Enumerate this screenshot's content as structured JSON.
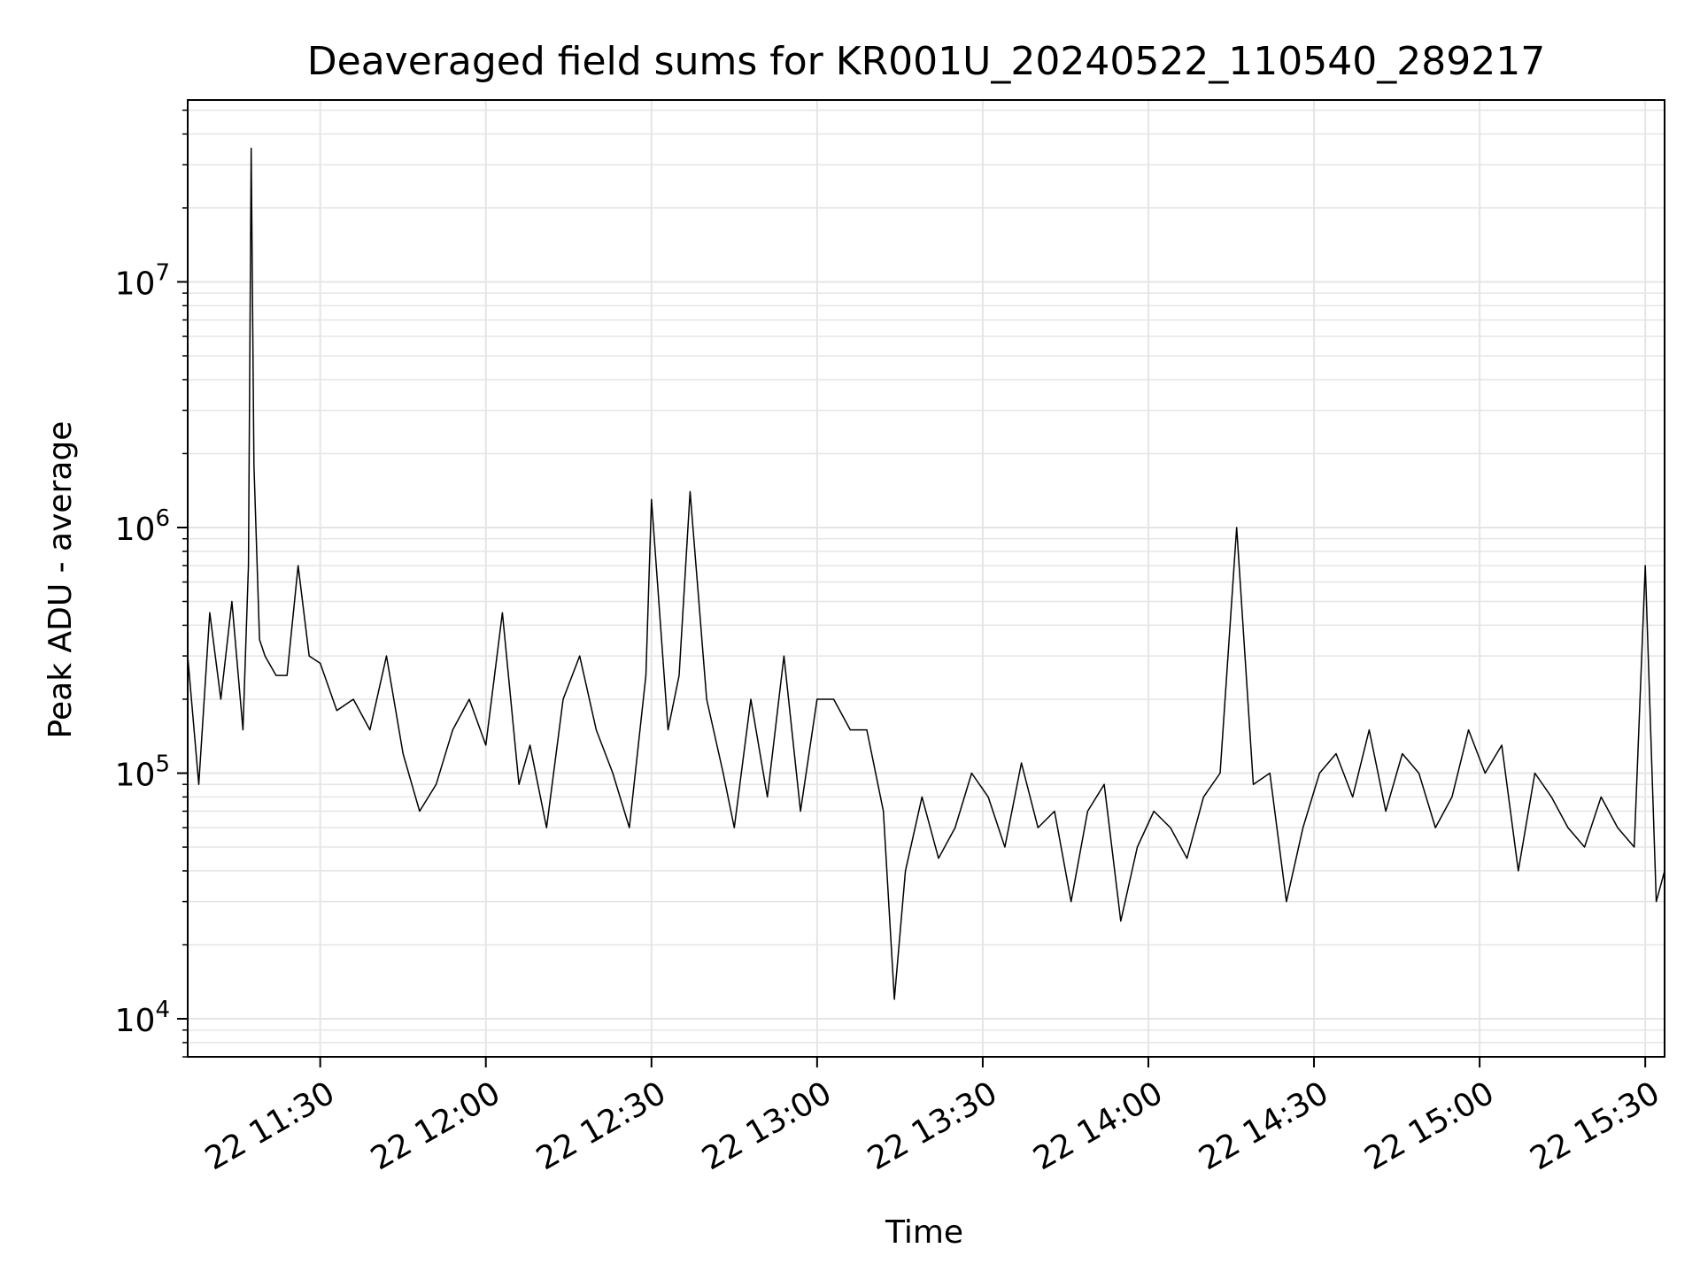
{
  "chart_data": {
    "type": "line",
    "title": "Deaveraged field sums for KR001U_20240522_110540_289217",
    "xlabel": "Time",
    "ylabel": "Peak ADU - average",
    "x_range": [
      "2024-05-22T11:06:00",
      "2024-05-22T15:33:30"
    ],
    "y_range": [
      7000,
      55000000
    ],
    "y_scale": "log",
    "grid": true,
    "series_color": "#000000",
    "grid_color": "#e5e5e5",
    "x_ticks": [
      {
        "t": "2024-05-22T11:30:00",
        "label": "22 11:30"
      },
      {
        "t": "2024-05-22T12:00:00",
        "label": "22 12:00"
      },
      {
        "t": "2024-05-22T12:30:00",
        "label": "22 12:30"
      },
      {
        "t": "2024-05-22T13:00:00",
        "label": "22 13:00"
      },
      {
        "t": "2024-05-22T13:30:00",
        "label": "22 13:30"
      },
      {
        "t": "2024-05-22T14:00:00",
        "label": "22 14:00"
      },
      {
        "t": "2024-05-22T14:30:00",
        "label": "22 14:30"
      },
      {
        "t": "2024-05-22T15:00:00",
        "label": "22 15:00"
      },
      {
        "t": "2024-05-22T15:30:00",
        "label": "22 15:30"
      }
    ],
    "y_ticks": [
      {
        "v": 10000,
        "base": "10",
        "exp": "4"
      },
      {
        "v": 100000,
        "base": "10",
        "exp": "5"
      },
      {
        "v": 1000000,
        "base": "10",
        "exp": "6"
      },
      {
        "v": 10000000,
        "base": "10",
        "exp": "7"
      }
    ],
    "series": [
      {
        "x": [
          "2024-05-22T11:06:00",
          "2024-05-22T11:08:00",
          "2024-05-22T11:10:00",
          "2024-05-22T11:12:00",
          "2024-05-22T11:14:00",
          "2024-05-22T11:16:00",
          "2024-05-22T11:17:00",
          "2024-05-22T11:17:30",
          "2024-05-22T11:18:00",
          "2024-05-22T11:19:00",
          "2024-05-22T11:20:00",
          "2024-05-22T11:22:00",
          "2024-05-22T11:24:00",
          "2024-05-22T11:26:00",
          "2024-05-22T11:28:00",
          "2024-05-22T11:30:00",
          "2024-05-22T11:33:00",
          "2024-05-22T11:36:00",
          "2024-05-22T11:39:00",
          "2024-05-22T11:42:00",
          "2024-05-22T11:45:00",
          "2024-05-22T11:48:00",
          "2024-05-22T11:51:00",
          "2024-05-22T11:54:00",
          "2024-05-22T11:57:00",
          "2024-05-22T12:00:00",
          "2024-05-22T12:03:00",
          "2024-05-22T12:06:00",
          "2024-05-22T12:08:00",
          "2024-05-22T12:11:00",
          "2024-05-22T12:14:00",
          "2024-05-22T12:17:00",
          "2024-05-22T12:20:00",
          "2024-05-22T12:23:00",
          "2024-05-22T12:26:00",
          "2024-05-22T12:29:00",
          "2024-05-22T12:30:00",
          "2024-05-22T12:33:00",
          "2024-05-22T12:35:00",
          "2024-05-22T12:37:00",
          "2024-05-22T12:40:00",
          "2024-05-22T12:43:00",
          "2024-05-22T12:45:00",
          "2024-05-22T12:48:00",
          "2024-05-22T12:51:00",
          "2024-05-22T12:54:00",
          "2024-05-22T12:57:00",
          "2024-05-22T13:00:00",
          "2024-05-22T13:03:00",
          "2024-05-22T13:06:00",
          "2024-05-22T13:09:00",
          "2024-05-22T13:12:00",
          "2024-05-22T13:14:00",
          "2024-05-22T13:16:00",
          "2024-05-22T13:19:00",
          "2024-05-22T13:22:00",
          "2024-05-22T13:25:00",
          "2024-05-22T13:28:00",
          "2024-05-22T13:31:00",
          "2024-05-22T13:34:00",
          "2024-05-22T13:37:00",
          "2024-05-22T13:40:00",
          "2024-05-22T13:43:00",
          "2024-05-22T13:46:00",
          "2024-05-22T13:49:00",
          "2024-05-22T13:52:00",
          "2024-05-22T13:55:00",
          "2024-05-22T13:58:00",
          "2024-05-22T14:01:00",
          "2024-05-22T14:04:00",
          "2024-05-22T14:07:00",
          "2024-05-22T14:10:00",
          "2024-05-22T14:13:00",
          "2024-05-22T14:16:00",
          "2024-05-22T14:19:00",
          "2024-05-22T14:22:00",
          "2024-05-22T14:25:00",
          "2024-05-22T14:28:00",
          "2024-05-22T14:31:00",
          "2024-05-22T14:34:00",
          "2024-05-22T14:37:00",
          "2024-05-22T14:40:00",
          "2024-05-22T14:43:00",
          "2024-05-22T14:46:00",
          "2024-05-22T14:49:00",
          "2024-05-22T14:52:00",
          "2024-05-22T14:55:00",
          "2024-05-22T14:58:00",
          "2024-05-22T15:01:00",
          "2024-05-22T15:04:00",
          "2024-05-22T15:07:00",
          "2024-05-22T15:10:00",
          "2024-05-22T15:13:00",
          "2024-05-22T15:16:00",
          "2024-05-22T15:19:00",
          "2024-05-22T15:22:00",
          "2024-05-22T15:25:00",
          "2024-05-22T15:28:00",
          "2024-05-22T15:30:00",
          "2024-05-22T15:32:00",
          "2024-05-22T15:33:30"
        ],
        "y": [
          300000,
          90000,
          450000,
          200000,
          500000,
          150000,
          700000,
          35000000,
          1800000,
          350000,
          300000,
          250000,
          250000,
          700000,
          300000,
          280000,
          180000,
          200000,
          150000,
          300000,
          120000,
          70000,
          90000,
          150000,
          200000,
          130000,
          450000,
          90000,
          130000,
          60000,
          200000,
          300000,
          150000,
          100000,
          60000,
          250000,
          1300000,
          150000,
          250000,
          1400000,
          200000,
          100000,
          60000,
          200000,
          80000,
          300000,
          70000,
          200000,
          200000,
          150000,
          150000,
          70000,
          12000,
          40000,
          80000,
          45000,
          60000,
          100000,
          80000,
          50000,
          110000,
          60000,
          70000,
          30000,
          70000,
          90000,
          25000,
          50000,
          70000,
          60000,
          45000,
          80000,
          100000,
          1000000,
          90000,
          100000,
          30000,
          60000,
          100000,
          120000,
          80000,
          150000,
          70000,
          120000,
          100000,
          60000,
          80000,
          150000,
          100000,
          130000,
          40000,
          100000,
          80000,
          60000,
          50000,
          80000,
          60000,
          50000,
          700000,
          30000,
          40000
        ]
      }
    ]
  }
}
